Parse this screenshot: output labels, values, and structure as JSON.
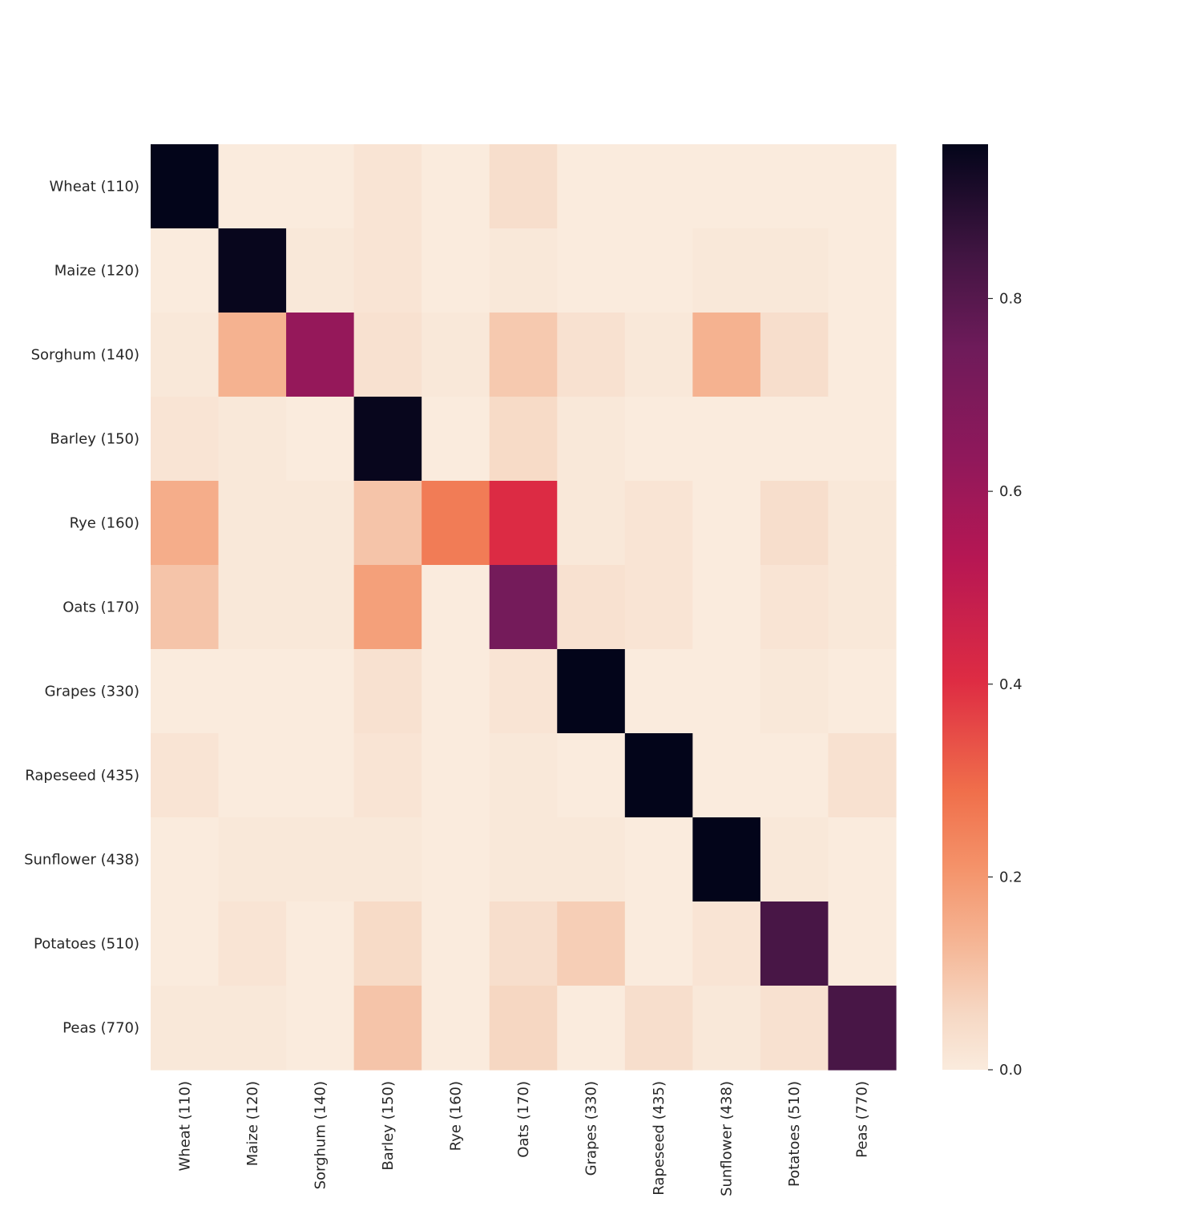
{
  "chart_data": {
    "type": "heatmap",
    "title": "",
    "xlabel": "",
    "ylabel": "",
    "x_labels": [
      "Wheat (110)",
      "Maize (120)",
      "Sorghum (140)",
      "Barley (150)",
      "Rye (160)",
      "Oats (170)",
      "Grapes (330)",
      "Rapeseed (435)",
      "Sunflower (438)",
      "Potatoes (510)",
      "Peas (770)"
    ],
    "y_labels": [
      "Wheat (110)",
      "Maize (120)",
      "Sorghum (140)",
      "Barley (150)",
      "Rye (160)",
      "Oats (170)",
      "Grapes (330)",
      "Rapeseed (435)",
      "Sunflower (438)",
      "Potatoes (510)",
      "Peas (770)"
    ],
    "values": [
      [
        0.96,
        0.0,
        0.0,
        0.02,
        0.0,
        0.04,
        0.0,
        0.0,
        0.0,
        0.0,
        0.0
      ],
      [
        0.0,
        0.95,
        0.01,
        0.02,
        0.0,
        0.01,
        0.0,
        0.0,
        0.01,
        0.01,
        0.0
      ],
      [
        0.01,
        0.14,
        0.62,
        0.03,
        0.01,
        0.09,
        0.03,
        0.01,
        0.14,
        0.04,
        0.0
      ],
      [
        0.02,
        0.01,
        0.0,
        0.95,
        0.0,
        0.05,
        0.01,
        0.0,
        0.0,
        0.0,
        0.0
      ],
      [
        0.15,
        0.01,
        0.01,
        0.1,
        0.26,
        0.41,
        0.01,
        0.02,
        0.0,
        0.04,
        0.01
      ],
      [
        0.1,
        0.01,
        0.01,
        0.18,
        0.0,
        0.73,
        0.03,
        0.02,
        0.0,
        0.02,
        0.01
      ],
      [
        0.0,
        0.0,
        0.0,
        0.03,
        0.0,
        0.02,
        0.96,
        0.0,
        0.0,
        0.01,
        0.0
      ],
      [
        0.02,
        0.0,
        0.0,
        0.02,
        0.0,
        0.01,
        0.0,
        0.96,
        0.0,
        0.0,
        0.03
      ],
      [
        0.0,
        0.01,
        0.01,
        0.01,
        0.0,
        0.01,
        0.01,
        0.0,
        0.96,
        0.01,
        0.0
      ],
      [
        0.0,
        0.02,
        0.0,
        0.05,
        0.0,
        0.04,
        0.08,
        0.0,
        0.02,
        0.83,
        0.0
      ],
      [
        0.01,
        0.01,
        0.0,
        0.1,
        0.0,
        0.06,
        0.0,
        0.04,
        0.01,
        0.03,
        0.83
      ]
    ],
    "vmin": 0.0,
    "vmax": 0.96,
    "colorbar_ticks": [
      0.0,
      0.2,
      0.4,
      0.6,
      0.8
    ],
    "colorbar_tick_labels": [
      "0.0",
      "0.2",
      "0.4",
      "0.6",
      "0.8"
    ],
    "colormap": "rocket_r",
    "colorbar_position": "right",
    "grid": false
  }
}
